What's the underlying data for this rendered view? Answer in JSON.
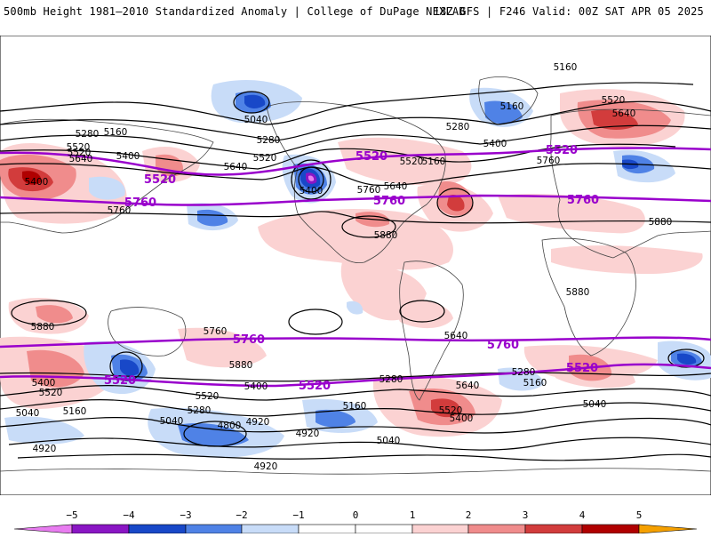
{
  "header": {
    "left_title": "500mb Height 1981–2010 Standardized Anomaly | College of DuPage NEXLAB",
    "right_title": "18Z GFS | F246 Valid: 00Z SAT APR 05 2025"
  },
  "colors": {
    "neg5": "#e87cf0",
    "neg4": "#8a16c4",
    "neg3": "#1848c8",
    "neg2": "#4f82e6",
    "neg1": "#c8dcf8",
    "zero": "#ffffff",
    "pos1": "#fbd2d2",
    "pos2": "#f08c8c",
    "pos3": "#d23c3c",
    "pos4": "#b00000",
    "pos5": "#f5a000",
    "highlight_contour": "#9900cc",
    "contour": "#000000",
    "coastline": "#444444"
  },
  "map": {
    "highlighted_contours": [
      {
        "label": "5520"
      },
      {
        "label": "5520"
      },
      {
        "label": "5520"
      },
      {
        "label": "5520"
      },
      {
        "label": "5760"
      },
      {
        "label": "5760"
      },
      {
        "label": "5760"
      },
      {
        "label": "5760"
      },
      {
        "label": "5760"
      },
      {
        "label": "5520"
      },
      {
        "label": "5520"
      }
    ],
    "contour_labels": [
      "5160",
      "5520",
      "5640",
      "5040",
      "5280",
      "5160",
      "5520",
      "5280",
      "5400",
      "5160",
      "5280",
      "5400",
      "5520",
      "5640",
      "5400",
      "5520",
      "5160",
      "5640",
      "5520",
      "5760",
      "5640",
      "5400",
      "5760",
      "5880",
      "5880",
      "5880",
      "5880",
      "5760",
      "5880",
      "5760",
      "5640",
      "5400",
      "5520",
      "5160",
      "5040",
      "5400",
      "5520",
      "5280",
      "5040",
      "4800",
      "4920",
      "4920",
      "4920",
      "4920",
      "5160",
      "5040",
      "5280",
      "5640",
      "5400",
      "5520",
      "5280",
      "5160",
      "5040"
    ]
  },
  "colorbar": {
    "ticks": [
      "−5",
      "−4",
      "−3",
      "−2",
      "−1",
      "0",
      "1",
      "2",
      "3",
      "4",
      "5"
    ]
  }
}
